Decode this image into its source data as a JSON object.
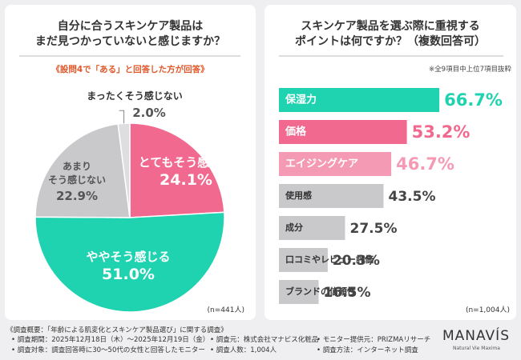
{
  "chart_data": [
    {
      "type": "pie",
      "title": "自分に合うスキンケア製品は\nまだ見つかっていないと感じますか？",
      "subtitle": "《設問4で「ある」と回答した方が回答》",
      "note": "(n=441人)",
      "categories": [
        "とてもそう感じる",
        "ややそう感じる",
        "あまり\nそう感じない",
        "まったくそう感じない"
      ],
      "values": [
        24.1,
        51.0,
        22.9,
        2.0
      ],
      "value_labels": [
        "24.1%",
        "51.0%",
        "22.9%",
        "2.0%"
      ],
      "colors": [
        "#f2698f",
        "#1fd3b1",
        "#c9c9cb",
        "#dedee0"
      ]
    },
    {
      "type": "hbar",
      "title": "スキンケア製品を選ぶ際に重視する\nポイントは何ですか？（複数回答可）",
      "subtitle": "※全9項目中上位7項目抜粋",
      "note": "(n=1,004人)",
      "categories": [
        "保湿力",
        "価格",
        "エイジングケア",
        "使用感",
        "成分",
        "口コミやレビュー評価",
        "ブランドの信頼性"
      ],
      "values": [
        66.7,
        53.2,
        46.7,
        43.5,
        27.5,
        20.3,
        16.5
      ],
      "value_labels": [
        "66.7%",
        "53.2%",
        "46.7%",
        "43.5%",
        "27.5%",
        "20.3%",
        "16.5%"
      ],
      "colors": [
        "#1fd3b1",
        "#f2698f",
        "#f59ab5",
        "#c9c9cb",
        "#c9c9cb",
        "#c9c9cb",
        "#c9c9cb"
      ]
    }
  ],
  "footer": {
    "heading": "《調査概要：「年齢による肌変化とスキンケア製品選び」に関する調査》",
    "rows": [
      [
        "• 調査期間：2025年12月18日（木）～2025年12月19日（金）",
        "• 調査元：株式会社マナビス化粧品",
        "• モニター提供元：PRIZMAリサーチ"
      ],
      [
        "• 調査対象：調査回答時に30～50代の女性と回答したモニター",
        "• 調査人数：1,004人",
        "• 調査方法：インターネット調査"
      ]
    ],
    "logo": "MANAVÍS",
    "tagline": "Natural Vie Maxima"
  }
}
